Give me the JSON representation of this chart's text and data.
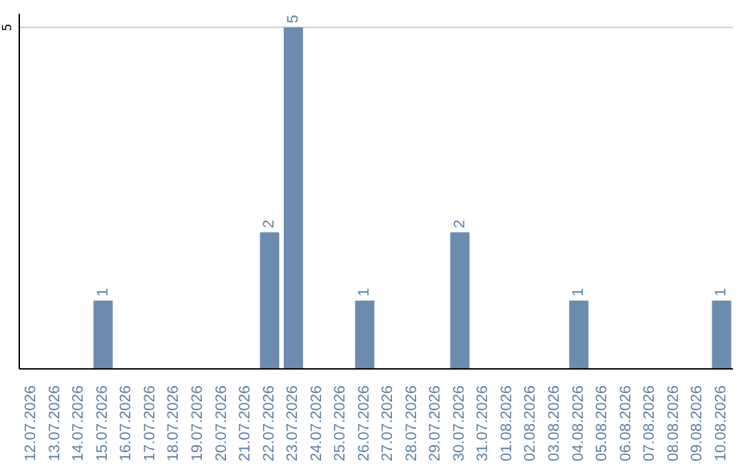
{
  "chart_data": {
    "type": "bar",
    "categories": [
      "12.07.2026",
      "13.07.2026",
      "14.07.2026",
      "15.07.2026",
      "16.07.2026",
      "17.07.2026",
      "18.07.2026",
      "19.07.2026",
      "20.07.2026",
      "21.07.2026",
      "22.07.2026",
      "23.07.2026",
      "24.07.2026",
      "25.07.2026",
      "26.07.2026",
      "27.07.2026",
      "28.07.2026",
      "29.07.2026",
      "30.07.2026",
      "31.07.2026",
      "01.08.2026",
      "02.08.2026",
      "03.08.2026",
      "04.08.2026",
      "05.08.2026",
      "06.08.2026",
      "07.08.2026",
      "08.08.2026",
      "09.08.2026",
      "10.08.2026"
    ],
    "values": [
      0,
      0,
      0,
      1,
      0,
      0,
      0,
      0,
      0,
      0,
      2,
      5,
      0,
      0,
      1,
      0,
      0,
      0,
      2,
      0,
      0,
      0,
      0,
      1,
      0,
      0,
      0,
      0,
      0,
      1
    ],
    "value_labels": [
      null,
      null,
      null,
      "1",
      null,
      null,
      null,
      null,
      null,
      null,
      "2",
      "5",
      null,
      null,
      "1",
      null,
      null,
      null,
      "2",
      null,
      null,
      null,
      null,
      "1",
      null,
      null,
      null,
      null,
      null,
      "1"
    ],
    "color": "#6b8cae",
    "ylim": [
      0,
      5.2
    ],
    "yticks": [
      5
    ],
    "grid": "y"
  }
}
